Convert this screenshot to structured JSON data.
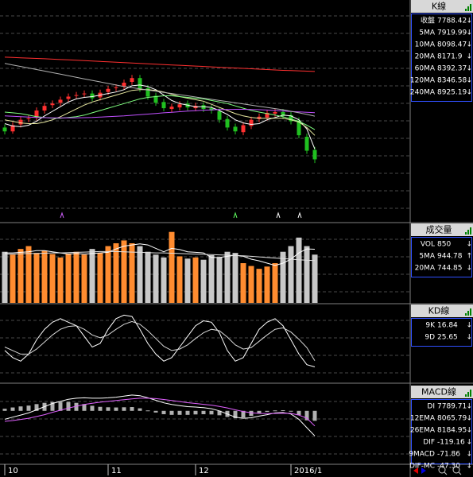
{
  "chart_data": [
    {
      "type": "candlestick",
      "title": "K線",
      "ylim": [
        6980,
        9850
      ],
      "up_color": "#ff3030",
      "down_color": "#20c020",
      "open": [
        8200,
        8150,
        8240,
        8310,
        8330,
        8420,
        8490,
        8520,
        8570,
        8610,
        8630,
        8640,
        8590,
        8660,
        8710,
        8730,
        8790,
        8840,
        8710,
        8610,
        8530,
        8440,
        8460,
        8510,
        8450,
        8490,
        8450,
        8410,
        8310,
        8210,
        8140,
        8220,
        8310,
        8330,
        8380,
        8400,
        8360,
        8290,
        8080,
        7910
      ],
      "high": [
        8240,
        8270,
        8340,
        8360,
        8460,
        8520,
        8550,
        8600,
        8640,
        8660,
        8680,
        8680,
        8690,
        8740,
        8760,
        8820,
        8880,
        8880,
        8750,
        8650,
        8570,
        8510,
        8540,
        8550,
        8520,
        8530,
        8490,
        8450,
        8350,
        8250,
        8270,
        8340,
        8380,
        8430,
        8440,
        8440,
        8400,
        8330,
        8120,
        7950
      ],
      "low": [
        8110,
        8120,
        8200,
        8270,
        8290,
        8380,
        8450,
        8480,
        8530,
        8570,
        8590,
        8540,
        8550,
        8620,
        8670,
        8690,
        8750,
        8660,
        8560,
        8480,
        8410,
        8400,
        8420,
        8420,
        8410,
        8400,
        8380,
        8260,
        8160,
        8110,
        8100,
        8180,
        8270,
        8290,
        8340,
        8310,
        8240,
        8060,
        7860,
        7740
      ],
      "close": [
        8150,
        8230,
        8300,
        8320,
        8420,
        8480,
        8510,
        8560,
        8600,
        8620,
        8640,
        8580,
        8650,
        8700,
        8720,
        8780,
        8840,
        8700,
        8600,
        8520,
        8450,
        8470,
        8500,
        8460,
        8480,
        8440,
        8420,
        8300,
        8200,
        8150,
        8230,
        8300,
        8340,
        8390,
        8400,
        8350,
        8280,
        8100,
        7900,
        7788
      ],
      "series": [
        {
          "name": "收盤",
          "color": "#80c0ff",
          "reading": 7788.42,
          "trend": "↓"
        },
        {
          "name": "5MA",
          "color": "#ffffff",
          "reading": 7919.99,
          "trend": "↓",
          "values": [
            8250,
            8220,
            8210,
            8230,
            8280,
            8350,
            8410,
            8470,
            8530,
            8570,
            8590,
            8600,
            8620,
            8640,
            8660,
            8690,
            8740,
            8750,
            8730,
            8690,
            8620,
            8550,
            8510,
            8490,
            8470,
            8470,
            8460,
            8420,
            8370,
            8300,
            8260,
            8240,
            8250,
            8300,
            8330,
            8360,
            8350,
            8300,
            8180,
            7920
          ]
        },
        {
          "name": "10MA",
          "color": "#e8e8a0",
          "reading": 8098.47,
          "trend": "↓",
          "values": [
            8300,
            8280,
            8260,
            8250,
            8250,
            8270,
            8300,
            8340,
            8390,
            8440,
            8490,
            8530,
            8560,
            8590,
            8620,
            8650,
            8680,
            8690,
            8690,
            8680,
            8660,
            8630,
            8600,
            8580,
            8560,
            8540,
            8500,
            8460,
            8420,
            8380,
            8350,
            8330,
            8320,
            8320,
            8320,
            8320,
            8300,
            8270,
            8200,
            8098
          ]
        },
        {
          "name": "20MA",
          "color": "#80ff80",
          "reading": 8171.9,
          "trend": "↓",
          "values": [
            8400,
            8390,
            8380,
            8360,
            8340,
            8330,
            8320,
            8320,
            8330,
            8340,
            8360,
            8390,
            8420,
            8450,
            8480,
            8510,
            8540,
            8570,
            8590,
            8600,
            8610,
            8610,
            8600,
            8590,
            8580,
            8570,
            8550,
            8530,
            8510,
            8480,
            8450,
            8420,
            8400,
            8380,
            8360,
            8340,
            8310,
            8280,
            8230,
            8172
          ]
        },
        {
          "name": "60MA",
          "color": "#c050ff",
          "reading": 8392.37,
          "trend": "↓",
          "values": [
            8350,
            8345,
            8340,
            8335,
            8330,
            8328,
            8326,
            8325,
            8325,
            8326,
            8328,
            8330,
            8335,
            8340,
            8345,
            8350,
            8358,
            8366,
            8374,
            8382,
            8390,
            8398,
            8405,
            8412,
            8418,
            8424,
            8428,
            8432,
            8434,
            8436,
            8436,
            8434,
            8430,
            8426,
            8420,
            8414,
            8408,
            8402,
            8397,
            8392
          ]
        },
        {
          "name": "120MA",
          "color": "#b0b0b0",
          "reading": 8346.58,
          "trend": "↓",
          "values": [
            9030,
            9010,
            8990,
            8970,
            8950,
            8930,
            8910,
            8890,
            8870,
            8850,
            8830,
            8810,
            8790,
            8770,
            8750,
            8730,
            8715,
            8700,
            8685,
            8670,
            8655,
            8640,
            8625,
            8610,
            8595,
            8580,
            8565,
            8550,
            8535,
            8520,
            8505,
            8490,
            8475,
            8460,
            8445,
            8430,
            8410,
            8390,
            8370,
            8347
          ]
        },
        {
          "name": "240MA",
          "color": "#ff3030",
          "reading": 8925.19,
          "trend": "↓",
          "values": [
            9110,
            9106,
            9102,
            9098,
            9094,
            9090,
            9085,
            9080,
            9075,
            9070,
            9065,
            9060,
            9055,
            9050,
            9045,
            9040,
            9035,
            9030,
            9025,
            9020,
            9015,
            9010,
            9005,
            9000,
            8995,
            8990,
            8985,
            8980,
            8975,
            8970,
            8965,
            8960,
            8955,
            8950,
            8945,
            8940,
            8937,
            8933,
            8929,
            8925
          ]
        }
      ]
    },
    {
      "type": "bar",
      "title": "成交量",
      "ylim": [
        0,
        1400
      ],
      "up_color": "#ff8c30",
      "down_color": "#c8c8c8",
      "values": [
        900,
        850,
        950,
        1000,
        880,
        920,
        860,
        800,
        870,
        900,
        850,
        950,
        880,
        1000,
        1050,
        1100,
        1050,
        1000,
        900,
        850,
        800,
        1250,
        820,
        780,
        800,
        760,
        840,
        800,
        900,
        880,
        700,
        650,
        600,
        640,
        700,
        900,
        1000,
        1150,
        1000,
        850
      ],
      "series": [
        {
          "name": "VOL",
          "color": "#ffffff",
          "reading": 850,
          "trend": "↓"
        },
        {
          "name": "5MA",
          "color": "#ffffff",
          "reading": 944.78,
          "trend": "↑",
          "values": [
            880,
            880,
            890,
            900,
            920,
            920,
            900,
            880,
            860,
            870,
            860,
            870,
            880,
            890,
            950,
            1000,
            1020,
            1040,
            1020,
            960,
            900,
            960,
            940,
            900,
            890,
            880,
            800,
            800,
            820,
            840,
            820,
            770,
            740,
            700,
            660,
            700,
            770,
            880,
            950,
            945
          ]
        },
        {
          "name": "20MA",
          "color": "#e0e0e0",
          "reading": 744.85,
          "trend": "↓",
          "values": [
            860,
            860,
            865,
            870,
            870,
            875,
            880,
            880,
            885,
            890,
            895,
            900,
            905,
            905,
            905,
            900,
            895,
            890,
            885,
            880,
            880,
            875,
            870,
            865,
            860,
            855,
            850,
            845,
            840,
            835,
            830,
            820,
            810,
            800,
            790,
            780,
            770,
            760,
            750,
            745
          ]
        }
      ]
    },
    {
      "type": "line",
      "title": "KD線",
      "ylim": [
        -5,
        105
      ],
      "series": [
        {
          "name": "9K",
          "color": "#ffffff",
          "reading": 16.84,
          "trend": "↓",
          "values": [
            40,
            30,
            25,
            35,
            55,
            70,
            80,
            85,
            80,
            75,
            60,
            45,
            50,
            70,
            85,
            90,
            88,
            70,
            50,
            35,
            25,
            30,
            45,
            60,
            75,
            82,
            80,
            65,
            40,
            25,
            30,
            50,
            70,
            80,
            85,
            75,
            55,
            35,
            20,
            16.84
          ]
        },
        {
          "name": "9D",
          "color": "#d8d8d8",
          "reading": 25.65,
          "trend": "↓",
          "values": [
            45,
            40,
            35,
            35,
            42,
            52,
            62,
            70,
            74,
            75,
            70,
            62,
            58,
            62,
            70,
            77,
            81,
            77,
            68,
            57,
            46,
            40,
            42,
            48,
            57,
            65,
            70,
            68,
            59,
            48,
            42,
            44,
            53,
            62,
            70,
            72,
            66,
            56,
            44,
            25.65
          ]
        }
      ]
    },
    {
      "type": "macd",
      "title": "MACD線",
      "ylim": [
        -250,
        120
      ],
      "categories": [
        "10",
        null,
        null,
        null,
        null,
        null,
        null,
        null,
        null,
        null,
        null,
        null,
        null,
        "11",
        null,
        null,
        null,
        null,
        null,
        null,
        null,
        null,
        null,
        null,
        "12",
        null,
        null,
        null,
        null,
        null,
        null,
        null,
        null,
        null,
        null,
        null,
        "2016/1",
        null,
        null,
        null
      ],
      "series": [
        {
          "name": "DI",
          "color": "#ffffff",
          "reading": 7789.71,
          "trend": "↓"
        },
        {
          "name": "12EMA",
          "color": "#ffffff",
          "reading": 8065.79,
          "trend": "↓"
        },
        {
          "name": "26EMA",
          "color": "#ffffff",
          "reading": 8184.95,
          "trend": "↓"
        },
        {
          "name": "DIF",
          "color": "#ffffff",
          "reading": -119.16,
          "trend": "↓",
          "values": [
            -40,
            -30,
            -20,
            -10,
            5,
            20,
            35,
            45,
            55,
            60,
            62,
            60,
            60,
            62,
            65,
            70,
            75,
            72,
            62,
            50,
            38,
            30,
            25,
            20,
            18,
            15,
            10,
            0,
            -15,
            -30,
            -35,
            -33,
            -25,
            -18,
            -10,
            -8,
            -15,
            -40,
            -80,
            -119.16
          ]
        },
        {
          "name": "9MACD",
          "color": "#e060ff",
          "reading": -71.86,
          "trend": "↓",
          "values": [
            -50,
            -46,
            -41,
            -35,
            -27,
            -18,
            -7,
            3,
            13,
            22,
            30,
            36,
            41,
            45,
            49,
            53,
            57,
            60,
            60,
            58,
            54,
            49,
            44,
            39,
            35,
            31,
            27,
            21,
            14,
            5,
            -3,
            -9,
            -12,
            -13,
            -12,
            -11,
            -12,
            -20,
            -35,
            -71.86
          ]
        },
        {
          "name": "DIF-MC",
          "color": "#b0b0b0",
          "reading": -47.3,
          "reading_label": "-47.30",
          "trend": "↓",
          "kind": "bar",
          "values": [
            10,
            16,
            21,
            25,
            32,
            38,
            42,
            42,
            42,
            38,
            32,
            24,
            19,
            17,
            16,
            17,
            18,
            12,
            2,
            -8,
            -16,
            -19,
            -19,
            -19,
            -17,
            -16,
            -17,
            -21,
            -29,
            -35,
            -32,
            -24,
            -13,
            -5,
            2,
            3,
            -3,
            -20,
            -45,
            -47.3
          ]
        }
      ]
    }
  ]
}
